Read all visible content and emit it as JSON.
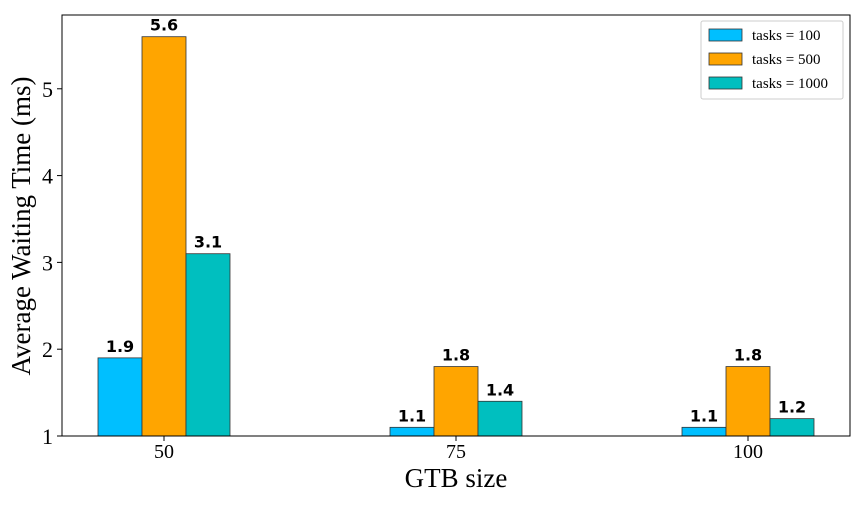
{
  "chart_data": {
    "type": "bar",
    "title": "",
    "xlabel": "GTB size",
    "ylabel": "Average Waiting Time (ms)",
    "categories": [
      "50",
      "75",
      "100"
    ],
    "ylim": [
      1,
      5.85
    ],
    "yticks": [
      "1",
      "2",
      "3",
      "4",
      "5"
    ],
    "grid": false,
    "legend_position": "top-right",
    "series": [
      {
        "name": "tasks = 100",
        "values": [
          1.9,
          1.1,
          1.1
        ],
        "labels": [
          "1.9",
          "1.1",
          "1.1"
        ],
        "color": "#00bfff"
      },
      {
        "name": "tasks = 500",
        "values": [
          5.6,
          1.8,
          1.8
        ],
        "labels": [
          "5.6",
          "1.8",
          "1.8"
        ],
        "color": "#ffa500"
      },
      {
        "name": "tasks = 1000",
        "values": [
          3.1,
          1.4,
          1.2
        ],
        "labels": [
          "3.1",
          "1.4",
          "1.2"
        ],
        "color": "#00bfbf"
      }
    ]
  }
}
